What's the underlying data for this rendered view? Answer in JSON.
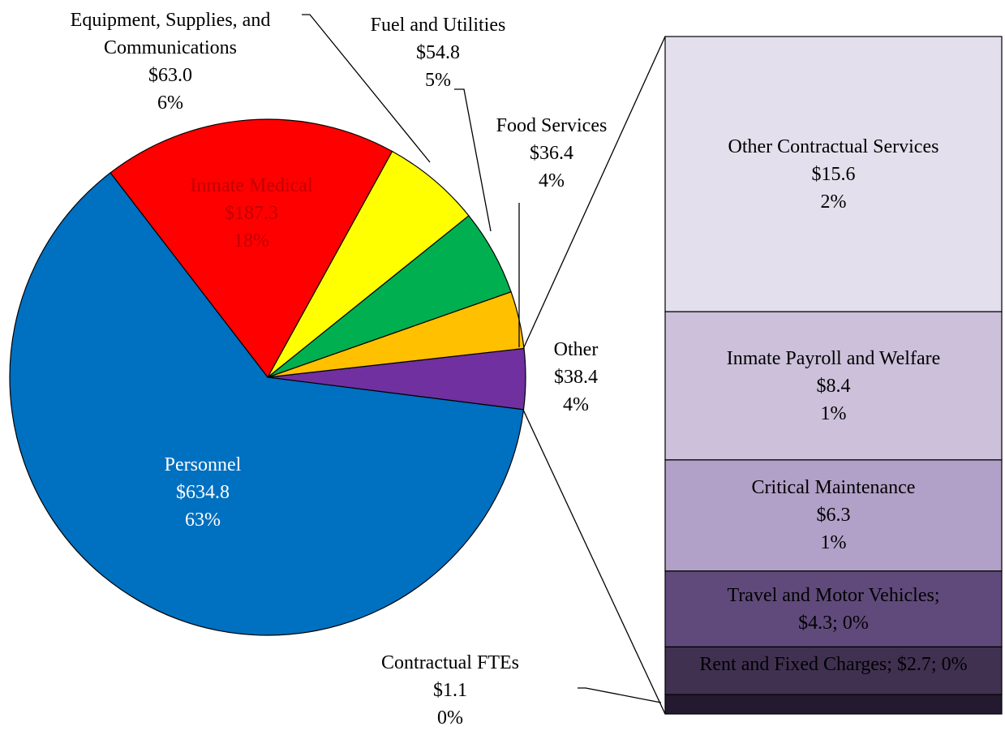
{
  "chart_data": {
    "type": "pie-of-bar",
    "slices": {
      "names": [
        "Other",
        "Food Services",
        "Fuel and Utilities",
        "Equipment, Supplies, and Communications",
        "Inmate Medical",
        "Personnel"
      ],
      "values": [
        38.4,
        36.4,
        54.8,
        63.0,
        187.3,
        634.8
      ],
      "value_labels": [
        "$38.4",
        "$36.4",
        "$54.8",
        "$63.0",
        "$187.3",
        "$634.8"
      ],
      "percent_labels": [
        "4%",
        "4%",
        "5%",
        "6%",
        "18%",
        "63%"
      ],
      "colors": [
        "#7030a0",
        "#ffc000",
        "#00b050",
        "#ffff00",
        "#ff0000",
        "#0070c0"
      ]
    },
    "breakdown": {
      "names": [
        "Other Contractual Services",
        "Inmate Payroll and Welfare",
        "Critical Maintenance",
        "Travel and Motor Vehicles",
        "Rent and Fixed Charges",
        "Contractual FTEs"
      ],
      "values": [
        15.6,
        8.4,
        6.3,
        4.3,
        2.7,
        1.1
      ],
      "value_labels": [
        "$15.6",
        "$8.4",
        "$6.3",
        "$4.3",
        "$2.7",
        "$1.1"
      ],
      "percent_labels": [
        "2%",
        "1%",
        "1%",
        "0%",
        "0%",
        "0%"
      ],
      "colors": [
        "#e4dfec",
        "#ccc0da",
        "#b1a0c7",
        "#604a7b",
        "#403151",
        "#241a30"
      ],
      "inline_labels": [
        false,
        false,
        false,
        true,
        true,
        false
      ],
      "label_separator": "; "
    }
  }
}
